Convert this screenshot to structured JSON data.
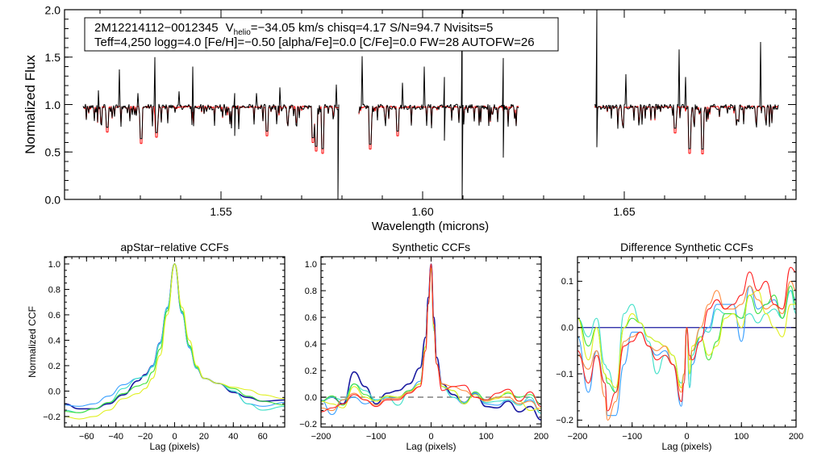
{
  "chart_data": [
    {
      "type": "line",
      "name": "spectrum",
      "xlabel": "Wavelength (microns)",
      "ylabel": "Normalized Flux",
      "xlim": [
        1.5112,
        1.6926
      ],
      "ylim": [
        0.0,
        2.0
      ],
      "xticks": [
        1.55,
        1.6,
        1.65
      ],
      "xtick_labels": [
        "1.55",
        "1.60",
        "1.65"
      ],
      "yticks": [
        0.0,
        0.5,
        1.0,
        1.5,
        2.0
      ],
      "ytick_labels": [
        "0.0",
        "0.5",
        "1.0",
        "1.5",
        "2.0"
      ],
      "info_box": {
        "star_id": "2M12214112−0012345",
        "v_symbol": "V",
        "v_sub": "helio",
        "line1_rest": "=−34.05 km/s  chisq=4.17  S/N=94.7  Nvisits=5",
        "line2": "Teff=4,250 logg=4.0 [Fe/H]=−0.50 [alpha/Fe]=0.0 [C/Fe]=0.0 FW=28 AUTOFW=26"
      },
      "continuum": 0.975,
      "segments": [
        [
          1.5158,
          1.5792
        ],
        [
          1.5842,
          1.6238
        ],
        [
          1.6426,
          1.6882
        ]
      ],
      "series": [
        {
          "name": "observed",
          "color": "#000000"
        },
        {
          "name": "model",
          "color": "#ff0000"
        }
      ],
      "observed_spikes": [
        [
          1.5196,
          1.15
        ],
        [
          1.5248,
          1.37
        ],
        [
          1.5294,
          1.12
        ],
        [
          1.5336,
          1.5
        ],
        [
          1.5396,
          1.14
        ],
        [
          1.543,
          1.4
        ],
        [
          1.5534,
          1.12
        ],
        [
          1.5588,
          1.12
        ],
        [
          1.5646,
          1.18
        ],
        [
          1.5786,
          1.21
        ],
        [
          1.585,
          1.51
        ],
        [
          1.595,
          1.23
        ],
        [
          1.6004,
          1.4
        ],
        [
          1.6054,
          1.29
        ],
        [
          1.6098,
          2.0
        ],
        [
          1.62,
          1.49
        ],
        [
          1.6276,
          1.32
        ],
        [
          1.631,
          1.57
        ],
        [
          1.6432,
          2.0
        ],
        [
          1.6504,
          1.32
        ],
        [
          1.6636,
          1.58
        ],
        [
          1.6652,
          1.29
        ],
        [
          1.6838,
          1.66
        ]
      ],
      "observed_dips": [
        [
          1.579,
          0.0
        ],
        [
          1.5534,
          0.67
        ],
        [
          1.6054,
          0.62
        ],
        [
          1.6098,
          0.0
        ],
        [
          1.62,
          0.44
        ],
        [
          1.631,
          0.34
        ],
        [
          1.6432,
          0.55
        ]
      ],
      "absorption_lines": [
        [
          1.5218,
          0.71
        ],
        [
          1.5302,
          0.59
        ],
        [
          1.534,
          0.655
        ],
        [
          1.5614,
          0.67
        ],
        [
          1.5728,
          0.6
        ],
        [
          1.5736,
          0.51
        ],
        [
          1.5752,
          0.485
        ],
        [
          1.587,
          0.53
        ],
        [
          1.5938,
          0.67
        ],
        [
          1.6278,
          0.68
        ],
        [
          1.6626,
          0.7
        ],
        [
          1.6662,
          0.485
        ],
        [
          1.6694,
          0.48
        ]
      ]
    },
    {
      "type": "line",
      "name": "apstar-ccf",
      "title": "apStar−relative CCFs",
      "xlabel": "Lag (pixels)",
      "ylabel": "Normalized CCF",
      "xlim": [
        -75,
        75
      ],
      "ylim": [
        -0.283,
        1.057
      ],
      "xticks": [
        -60,
        -40,
        -20,
        0,
        20,
        40,
        60
      ],
      "xtick_labels": [
        "−60",
        "−40",
        "−20",
        "0",
        "20",
        "40",
        "60"
      ],
      "yticks": [
        -0.2,
        0.0,
        0.2,
        0.4,
        0.6,
        0.8,
        1.0
      ],
      "ytick_labels": [
        "−0.2",
        "0.0",
        "0.2",
        "0.4",
        "0.6",
        "0.8",
        "1.0"
      ],
      "x": [
        -75,
        -65,
        -55,
        -45,
        -35,
        -25,
        -20,
        -15,
        -10,
        -5,
        0,
        5,
        10,
        15,
        20,
        30,
        40,
        50,
        60,
        75
      ],
      "series": [
        {
          "name": "visit-1",
          "color": "#1a1aa0",
          "values": [
            -0.1,
            -0.14,
            -0.14,
            -0.1,
            -0.03,
            0.08,
            0.13,
            0.2,
            0.38,
            0.65,
            1.0,
            0.62,
            0.35,
            0.18,
            0.1,
            0.06,
            -0.01,
            -0.05,
            -0.08,
            -0.07
          ]
        },
        {
          "name": "visit-2",
          "color": "#3aa0ff",
          "values": [
            -0.11,
            -0.12,
            -0.1,
            -0.04,
            0.05,
            0.1,
            0.12,
            0.2,
            0.38,
            0.66,
            1.0,
            0.61,
            0.34,
            0.18,
            0.1,
            0.06,
            0.0,
            -0.1,
            -0.12,
            -0.09
          ]
        },
        {
          "name": "visit-3",
          "color": "#40e0c8",
          "values": [
            -0.15,
            -0.17,
            -0.14,
            -0.09,
            0.02,
            0.1,
            0.12,
            0.19,
            0.37,
            0.65,
            1.0,
            0.62,
            0.35,
            0.18,
            0.1,
            0.06,
            0.0,
            -0.1,
            -0.15,
            -0.12
          ]
        },
        {
          "name": "visit-4",
          "color": "#40e040",
          "values": [
            -0.16,
            -0.17,
            -0.14,
            -0.09,
            -0.02,
            0.04,
            0.06,
            0.15,
            0.33,
            0.63,
            1.0,
            0.63,
            0.36,
            0.19,
            0.1,
            0.06,
            0.02,
            -0.04,
            -0.08,
            -0.11
          ]
        },
        {
          "name": "visit-5",
          "color": "#e0f020",
          "values": [
            -0.2,
            -0.22,
            -0.2,
            -0.15,
            -0.06,
            -0.02,
            0.02,
            0.1,
            0.28,
            0.6,
            1.0,
            0.66,
            0.4,
            0.2,
            0.1,
            0.06,
            0.03,
            0.01,
            -0.03,
            -0.06
          ]
        }
      ]
    },
    {
      "type": "line",
      "name": "synthetic-ccf",
      "title": "Synthetic CCFs",
      "xlabel": "Lag (pixels)",
      "xlim": [
        -200,
        200
      ],
      "ylim": [
        -0.224,
        1.055
      ],
      "xticks": [
        -200,
        -100,
        0,
        100,
        200
      ],
      "xtick_labels": [
        "−200",
        "−100",
        "0",
        "100",
        "200"
      ],
      "yticks": [
        -0.2,
        0.0,
        0.2,
        0.4,
        0.6,
        0.8,
        1.0
      ],
      "ytick_labels": [
        "−0.2",
        "0.0",
        "0.2",
        "0.4",
        "0.6",
        "0.8",
        "1.0"
      ],
      "reference_line": {
        "y": 0.0,
        "color": "#808080",
        "style": "dashed"
      },
      "x": [
        -200,
        -180,
        -160,
        -140,
        -120,
        -100,
        -80,
        -60,
        -40,
        -20,
        -10,
        -5,
        0,
        5,
        10,
        20,
        40,
        60,
        80,
        100,
        120,
        140,
        160,
        180,
        200
      ],
      "series": [
        {
          "name": "visit-1",
          "color": "#1a1aa0",
          "values": [
            -0.03,
            0.0,
            -0.05,
            0.19,
            0.08,
            -0.05,
            0.03,
            0.05,
            0.1,
            0.22,
            0.45,
            0.75,
            1.0,
            0.6,
            0.3,
            0.1,
            0.02,
            -0.04,
            0.03,
            -0.07,
            -0.08,
            -0.03,
            -0.11,
            -0.07,
            -0.17
          ]
        },
        {
          "name": "visit-2",
          "color": "#3aa0ff",
          "values": [
            -0.02,
            -0.13,
            -0.02,
            0.0,
            -0.05,
            -0.02,
            -0.01,
            0.0,
            0.05,
            0.12,
            0.38,
            0.7,
            1.0,
            0.55,
            0.25,
            0.08,
            0.0,
            -0.05,
            0.03,
            -0.05,
            -0.06,
            -0.02,
            -0.05,
            -0.02,
            -0.12
          ]
        },
        {
          "name": "visit-3",
          "color": "#40e0c8",
          "values": [
            -0.03,
            0.0,
            -0.02,
            0.1,
            0.05,
            -0.02,
            0.0,
            -0.06,
            0.04,
            0.1,
            0.38,
            0.7,
            0.95,
            0.5,
            0.25,
            0.08,
            0.0,
            -0.04,
            0.02,
            -0.04,
            -0.03,
            -0.02,
            -0.06,
            0.0,
            -0.12
          ]
        },
        {
          "name": "visit-4",
          "color": "#40e040",
          "values": [
            -0.03,
            0.01,
            -0.06,
            0.1,
            0.02,
            -0.03,
            0.01,
            0.0,
            0.05,
            0.1,
            0.38,
            0.7,
            0.97,
            0.52,
            0.25,
            0.08,
            0.05,
            -0.05,
            0.04,
            -0.02,
            0.0,
            0.03,
            0.0,
            0.02,
            -0.05
          ]
        },
        {
          "name": "visit-5",
          "color": "#e0f020",
          "values": [
            -0.03,
            -0.05,
            -0.08,
            0.08,
            0.0,
            -0.03,
            0.01,
            0.0,
            0.04,
            0.1,
            0.38,
            0.7,
            0.97,
            0.52,
            0.25,
            0.08,
            0.05,
            -0.05,
            0.02,
            -0.03,
            -0.01,
            0.04,
            -0.03,
            -0.1,
            -0.08
          ]
        },
        {
          "name": "visit-6",
          "color": "#ff8c40",
          "values": [
            -0.08,
            -0.1,
            -0.02,
            0.03,
            -0.02,
            -0.06,
            -0.01,
            -0.01,
            0.04,
            0.08,
            0.35,
            0.7,
            0.99,
            0.55,
            0.25,
            0.1,
            0.08,
            0.05,
            0.0,
            -0.03,
            0.0,
            0.0,
            -0.05,
            -0.03,
            -0.1
          ]
        },
        {
          "name": "visit-7",
          "color": "#ff2020",
          "values": [
            -0.11,
            -0.08,
            -0.05,
            0.02,
            -0.02,
            -0.07,
            -0.02,
            -0.02,
            0.03,
            0.08,
            0.35,
            0.7,
            1.0,
            0.55,
            0.25,
            0.05,
            0.08,
            0.09,
            0.0,
            -0.02,
            0.03,
            0.06,
            -0.03,
            0.04,
            -0.07
          ]
        }
      ]
    },
    {
      "type": "line",
      "name": "difference-ccf",
      "title": "Difference Synthetic CCFs",
      "xlabel": "Lag (pixels)",
      "xlim": [
        -200,
        200
      ],
      "ylim": [
        -0.215,
        0.153
      ],
      "xticks": [
        -200,
        -100,
        0,
        100,
        200
      ],
      "xtick_labels": [
        "−200",
        "−100",
        "0",
        "100",
        "200"
      ],
      "yticks": [
        -0.2,
        -0.1,
        0.0,
        0.1
      ],
      "ytick_labels": [
        "−0.2",
        "−0.1",
        "0.0",
        "0.1"
      ],
      "reference_line": {
        "y": 0.0,
        "color": "#1a1aa0",
        "style": "solid"
      },
      "x": [
        -200,
        -180,
        -165,
        -150,
        -145,
        -130,
        -115,
        -100,
        -85,
        -70,
        -55,
        -40,
        -25,
        -10,
        -5,
        0,
        5,
        10,
        25,
        40,
        55,
        70,
        85,
        100,
        115,
        130,
        145,
        160,
        175,
        190,
        200
      ],
      "series": [
        {
          "name": "visit-2",
          "color": "#3aa0ff",
          "values": [
            -0.02,
            -0.14,
            -0.05,
            -0.12,
            -0.19,
            -0.19,
            -0.08,
            -0.01,
            -0.01,
            -0.04,
            -0.06,
            -0.05,
            -0.08,
            -0.17,
            -0.12,
            0.0,
            -0.13,
            -0.08,
            -0.02,
            0.0,
            0.05,
            0.05,
            0.05,
            -0.03,
            0.09,
            0.04,
            0.05,
            0.06,
            0.02,
            0.08,
            0.06
          ]
        },
        {
          "name": "visit-3",
          "color": "#40e0c8",
          "values": [
            0.02,
            -0.02,
            0.02,
            -0.08,
            -0.09,
            -0.14,
            0.03,
            0.05,
            0.01,
            -0.03,
            -0.1,
            -0.06,
            -0.08,
            -0.12,
            -0.1,
            0.0,
            -0.13,
            -0.06,
            0.0,
            -0.01,
            0.04,
            0.03,
            0.03,
            0.02,
            0.03,
            0.01,
            0.03,
            0.04,
            0.02,
            0.08,
            0.03
          ]
        },
        {
          "name": "visit-4",
          "color": "#40e040",
          "values": [
            0.02,
            -0.04,
            0.0,
            -0.1,
            -0.12,
            -0.14,
            0.0,
            0.02,
            0.01,
            -0.02,
            -0.03,
            -0.04,
            -0.06,
            -0.13,
            -0.1,
            0.0,
            -0.1,
            -0.05,
            -0.02,
            -0.07,
            -0.03,
            0.03,
            0.03,
            0.02,
            0.07,
            0.03,
            0.05,
            0.07,
            0.02,
            0.09,
            0.05
          ]
        },
        {
          "name": "visit-5",
          "color": "#e0f020",
          "values": [
            0.02,
            -0.07,
            0.0,
            -0.1,
            -0.11,
            -0.13,
            0.0,
            0.03,
            0.01,
            -0.02,
            -0.03,
            -0.04,
            -0.06,
            -0.13,
            -0.1,
            0.0,
            -0.1,
            -0.04,
            -0.02,
            -0.06,
            -0.04,
            0.02,
            0.03,
            0.0,
            0.07,
            0.08,
            0.03,
            0.0,
            -0.02,
            0.05,
            0.05
          ]
        },
        {
          "name": "visit-6",
          "color": "#ff8c40",
          "values": [
            -0.06,
            -0.09,
            -0.05,
            -0.15,
            -0.2,
            -0.16,
            -0.03,
            -0.02,
            -0.01,
            -0.04,
            -0.05,
            -0.04,
            -0.08,
            -0.14,
            -0.1,
            0.0,
            -0.07,
            -0.05,
            0.0,
            0.05,
            0.08,
            0.04,
            0.04,
            0.05,
            0.09,
            0.06,
            0.04,
            0.05,
            0.03,
            0.1,
            0.08
          ]
        },
        {
          "name": "visit-7",
          "color": "#ff2020",
          "values": [
            -0.05,
            -0.12,
            -0.06,
            -0.12,
            -0.18,
            -0.14,
            -0.04,
            -0.03,
            -0.01,
            -0.04,
            -0.07,
            -0.06,
            -0.08,
            -0.16,
            -0.12,
            0.0,
            -0.06,
            -0.07,
            -0.03,
            0.04,
            0.06,
            0.04,
            0.05,
            0.07,
            0.12,
            0.08,
            0.1,
            0.05,
            0.04,
            0.13,
            0.12
          ]
        }
      ]
    }
  ]
}
